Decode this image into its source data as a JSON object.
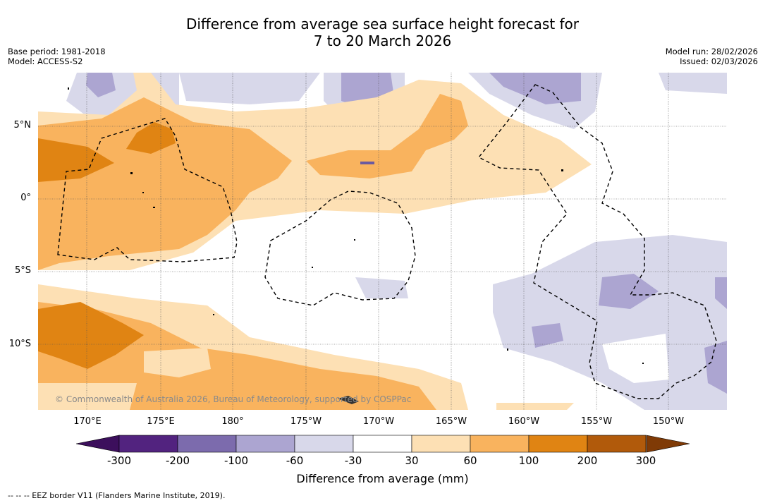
{
  "title": {
    "line1": "Difference from average sea surface height forecast for",
    "line2": "7 to 20 March 2026"
  },
  "meta_left": {
    "base_period": "Base period: 1981-2018",
    "model": "Model: ACCESS-S2"
  },
  "meta_right": {
    "model_run": "Model run: 28/02/2026",
    "issued": "Issued: 02/03/2026"
  },
  "lat_labels": [
    "5°N",
    "0°",
    "5°S",
    "10°S"
  ],
  "lon_labels": [
    "170°E",
    "175°E",
    "180°",
    "175°W",
    "170°W",
    "165°W",
    "160°W",
    "155°W",
    "150°W"
  ],
  "copyright": "© Commonwealth of Australia 2026, Bureau of Meteorology, supported by COSPPac",
  "colorbar": {
    "ticks": [
      "-300",
      "-200",
      "-100",
      "-60",
      "-30",
      "30",
      "60",
      "100",
      "200",
      "300"
    ],
    "colors": [
      "#52237f",
      "#7c6bad",
      "#aca5d1",
      "#d8d8ea",
      "#ffffff",
      "#fde0b4",
      "#f9b35e",
      "#e08413",
      "#b15a0b"
    ],
    "under_color": "#3c0f5c",
    "over_color": "#7f3a06",
    "label": "Difference from average (mm)"
  },
  "footer": "--  --  -- EEZ border V11 (Flanders Marine Institute, 2019)."
}
